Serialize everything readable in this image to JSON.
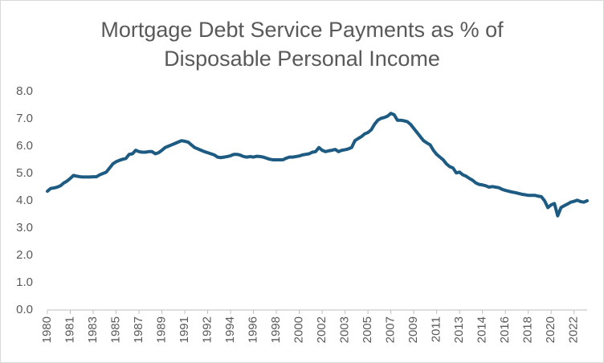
{
  "chart_data": {
    "type": "line",
    "title": "Mortgage Debt Service Payments as % of Disposable Personal Income",
    "color": "#1d5b82",
    "ylim": [
      0,
      8
    ],
    "yticks": [
      {
        "value": 0,
        "label": "0.0"
      },
      {
        "value": 1,
        "label": "1.0"
      },
      {
        "value": 2,
        "label": "2.0"
      },
      {
        "value": 3,
        "label": "3.0"
      },
      {
        "value": 4,
        "label": "4.0"
      },
      {
        "value": 5,
        "label": "5.0"
      },
      {
        "value": 6,
        "label": "6.0"
      },
      {
        "value": 7,
        "label": "7.0"
      },
      {
        "value": 8,
        "label": "8.0"
      }
    ],
    "categories": [
      "1980",
      null,
      null,
      null,
      null,
      null,
      null,
      "1981",
      null,
      null,
      null,
      null,
      null,
      null,
      "1983",
      null,
      null,
      null,
      null,
      null,
      null,
      "1985",
      null,
      null,
      null,
      null,
      null,
      null,
      "1987",
      null,
      null,
      null,
      null,
      null,
      null,
      "1989",
      null,
      null,
      null,
      null,
      null,
      null,
      "1991",
      null,
      null,
      null,
      null,
      null,
      null,
      "1992",
      null,
      null,
      null,
      null,
      null,
      null,
      "1994",
      null,
      null,
      null,
      null,
      null,
      null,
      "1996",
      null,
      null,
      null,
      null,
      null,
      null,
      "1998",
      null,
      null,
      null,
      null,
      null,
      null,
      "2000",
      null,
      null,
      null,
      null,
      null,
      null,
      "2002",
      null,
      null,
      null,
      null,
      null,
      null,
      "2003",
      null,
      null,
      null,
      null,
      null,
      null,
      "2005",
      null,
      null,
      null,
      null,
      null,
      null,
      "2007",
      null,
      null,
      null,
      null,
      null,
      null,
      "2009",
      null,
      null,
      null,
      null,
      null,
      null,
      "2011",
      null,
      null,
      null,
      null,
      null,
      null,
      "2013",
      null,
      null,
      null,
      null,
      null,
      null,
      "2014",
      null,
      null,
      null,
      null,
      null,
      null,
      "2016",
      null,
      null,
      null,
      null,
      null,
      null,
      "2018",
      null,
      null,
      null,
      null,
      null,
      null,
      "2020",
      null,
      null,
      null,
      null,
      null,
      null,
      "2022",
      null,
      null,
      null,
      null
    ],
    "values": [
      4.35,
      4.45,
      4.47,
      4.5,
      4.55,
      4.65,
      4.72,
      4.82,
      4.93,
      4.9,
      4.88,
      4.87,
      4.87,
      4.87,
      4.88,
      4.88,
      4.95,
      5.0,
      5.05,
      5.2,
      5.35,
      5.43,
      5.48,
      5.52,
      5.55,
      5.7,
      5.72,
      5.85,
      5.8,
      5.78,
      5.78,
      5.8,
      5.8,
      5.72,
      5.76,
      5.85,
      5.95,
      6.0,
      6.05,
      6.1,
      6.15,
      6.2,
      6.18,
      6.15,
      6.05,
      5.95,
      5.9,
      5.85,
      5.8,
      5.76,
      5.72,
      5.68,
      5.6,
      5.58,
      5.6,
      5.62,
      5.65,
      5.7,
      5.7,
      5.67,
      5.62,
      5.6,
      5.62,
      5.6,
      5.63,
      5.62,
      5.6,
      5.56,
      5.52,
      5.5,
      5.5,
      5.5,
      5.5,
      5.56,
      5.6,
      5.6,
      5.62,
      5.64,
      5.68,
      5.7,
      5.72,
      5.78,
      5.8,
      5.95,
      5.85,
      5.8,
      5.83,
      5.85,
      5.88,
      5.8,
      5.85,
      5.87,
      5.9,
      5.95,
      6.2,
      6.28,
      6.35,
      6.45,
      6.5,
      6.6,
      6.8,
      6.95,
      7.02,
      7.05,
      7.1,
      7.2,
      7.15,
      6.95,
      6.95,
      6.93,
      6.9,
      6.8,
      6.65,
      6.5,
      6.35,
      6.2,
      6.12,
      6.05,
      5.85,
      5.7,
      5.6,
      5.5,
      5.35,
      5.25,
      5.2,
      5.02,
      5.05,
      4.95,
      4.9,
      4.82,
      4.75,
      4.65,
      4.6,
      4.58,
      4.55,
      4.5,
      4.52,
      4.5,
      4.48,
      4.42,
      4.38,
      4.35,
      4.32,
      4.3,
      4.27,
      4.24,
      4.22,
      4.2,
      4.2,
      4.2,
      4.17,
      4.15,
      4.0,
      3.75,
      3.85,
      3.9,
      3.45,
      3.75,
      3.82,
      3.88,
      3.95,
      3.98,
      4.02,
      3.97,
      3.95,
      4.0
    ]
  }
}
